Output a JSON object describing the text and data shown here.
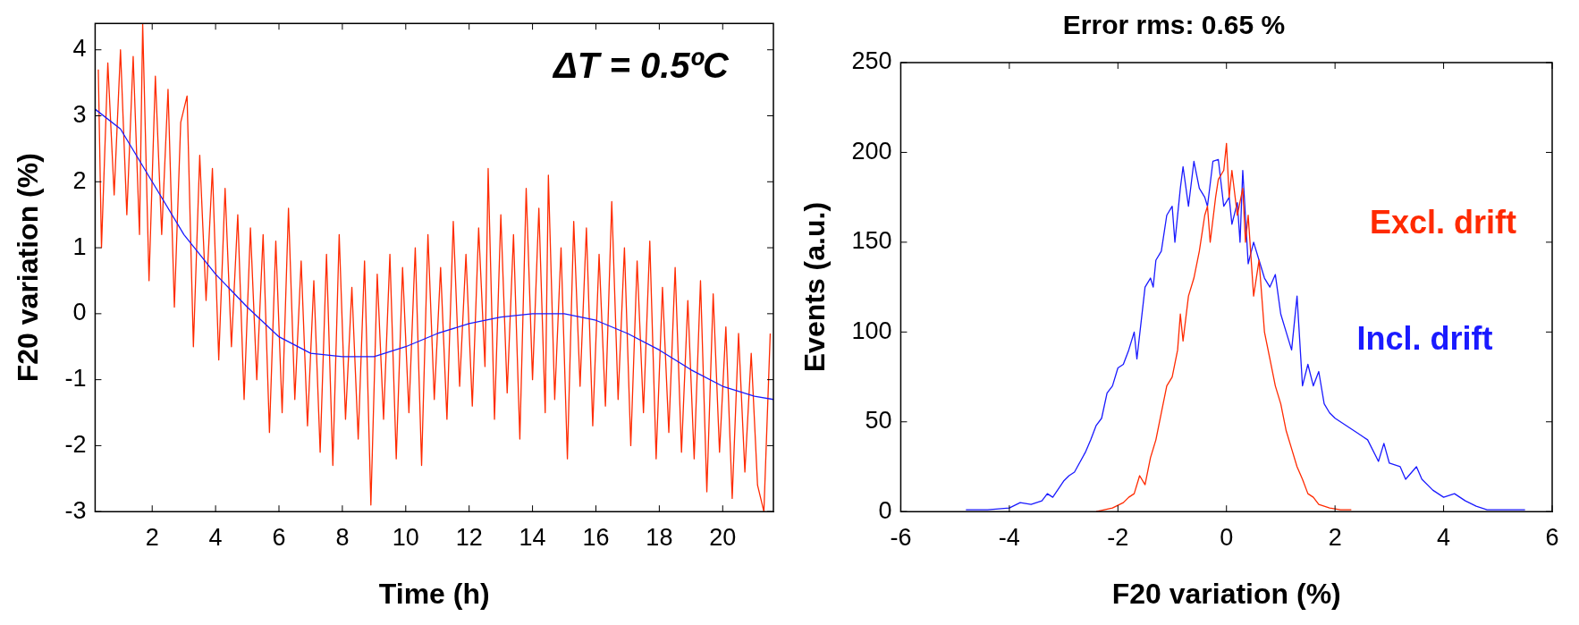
{
  "chart_data": [
    {
      "type": "line",
      "xlabel": "Time (h)",
      "ylabel": "F20 variation (%)",
      "annotations": [
        "ΔT = 0.5ºC"
      ],
      "marker": "none",
      "xlim": [
        0.2,
        21.6
      ],
      "ylim": [
        -3,
        4.4
      ],
      "xticks": [
        2,
        4,
        6,
        8,
        10,
        12,
        14,
        16,
        18,
        20
      ],
      "yticks": [
        -3,
        -2,
        -1,
        0,
        1,
        2,
        3,
        4
      ],
      "series": [
        {
          "color": "#ff2a00",
          "x": [
            0.3,
            0.4,
            0.6,
            0.8,
            1.0,
            1.2,
            1.4,
            1.6,
            1.7,
            1.9,
            2.1,
            2.3,
            2.5,
            2.7,
            2.9,
            3.1,
            3.3,
            3.5,
            3.7,
            3.9,
            4.1,
            4.3,
            4.5,
            4.7,
            4.9,
            5.1,
            5.3,
            5.5,
            5.7,
            5.9,
            6.1,
            6.3,
            6.5,
            6.7,
            6.9,
            7.1,
            7.3,
            7.5,
            7.7,
            7.9,
            8.1,
            8.3,
            8.5,
            8.7,
            8.9,
            9.1,
            9.3,
            9.5,
            9.7,
            9.9,
            10.1,
            10.3,
            10.5,
            10.7,
            10.9,
            11.1,
            11.3,
            11.5,
            11.7,
            11.9,
            12.1,
            12.3,
            12.5,
            12.6,
            12.8,
            13.0,
            13.2,
            13.4,
            13.6,
            13.8,
            14.0,
            14.2,
            14.4,
            14.5,
            14.7,
            14.9,
            15.1,
            15.3,
            15.5,
            15.7,
            15.9,
            16.1,
            16.3,
            16.5,
            16.7,
            16.9,
            17.1,
            17.3,
            17.5,
            17.7,
            17.9,
            18.1,
            18.3,
            18.5,
            18.7,
            18.9,
            19.1,
            19.3,
            19.5,
            19.7,
            19.9,
            20.1,
            20.3,
            20.5,
            20.7,
            20.9,
            21.1,
            21.3,
            21.5
          ],
          "values": [
            3.7,
            1.0,
            3.8,
            1.8,
            4.0,
            1.5,
            3.9,
            1.2,
            4.4,
            0.5,
            3.6,
            1.2,
            3.4,
            0.1,
            2.9,
            3.3,
            -0.5,
            2.4,
            0.2,
            2.2,
            -0.7,
            1.9,
            -0.5,
            1.5,
            -1.3,
            1.3,
            -1.0,
            1.2,
            -1.8,
            1.1,
            -1.5,
            1.6,
            -1.3,
            0.8,
            -1.7,
            0.5,
            -2.1,
            0.9,
            -2.3,
            1.2,
            -1.6,
            0.4,
            -1.9,
            0.8,
            -2.9,
            0.6,
            -1.6,
            0.9,
            -2.2,
            0.7,
            -1.5,
            1.0,
            -2.3,
            1.2,
            -1.3,
            0.7,
            -1.6,
            1.4,
            -1.1,
            0.9,
            -1.4,
            1.3,
            -0.8,
            2.2,
            -1.6,
            1.5,
            -1.2,
            1.2,
            -1.9,
            1.9,
            -1.0,
            1.6,
            -1.5,
            2.1,
            -1.3,
            1.0,
            -2.2,
            1.4,
            -1.1,
            1.3,
            -1.7,
            0.9,
            -1.4,
            1.7,
            -1.3,
            1.0,
            -2.0,
            0.8,
            -1.5,
            1.1,
            -2.2,
            0.4,
            -1.8,
            0.7,
            -2.1,
            0.2,
            -2.2,
            0.5,
            -2.7,
            0.3,
            -2.1,
            -0.2,
            -2.8,
            -0.3,
            -2.4,
            -0.6,
            -2.6,
            -3.0,
            -0.3
          ]
        },
        {
          "color": "#1a1aff",
          "x": [
            0.2,
            1,
            2,
            3,
            4,
            5,
            6,
            7,
            8,
            9,
            10,
            11,
            12,
            13,
            14,
            15,
            16,
            17,
            18,
            19,
            20,
            21,
            21.6
          ],
          "values": [
            3.1,
            2.8,
            2.0,
            1.2,
            0.6,
            0.1,
            -0.35,
            -0.6,
            -0.65,
            -0.65,
            -0.5,
            -0.3,
            -0.15,
            -0.05,
            0.0,
            0.0,
            -0.1,
            -0.3,
            -0.55,
            -0.85,
            -1.1,
            -1.25,
            -1.3
          ]
        }
      ]
    },
    {
      "type": "line",
      "title": "Error rms: 0.65 %",
      "xlabel": "F20 variation (%)",
      "ylabel": "Events (a.u.)",
      "marker": "none",
      "xlim": [
        -6,
        6
      ],
      "ylim": [
        0,
        250
      ],
      "xticks": [
        -6,
        -4,
        -2,
        0,
        2,
        4,
        6
      ],
      "yticks": [
        0,
        50,
        100,
        150,
        200,
        250
      ],
      "series": [
        {
          "name": "Incl. drift",
          "color": "#1a1aff",
          "x": [
            -4.8,
            -4.4,
            -4.0,
            -3.8,
            -3.6,
            -3.4,
            -3.3,
            -3.2,
            -3.0,
            -2.9,
            -2.8,
            -2.6,
            -2.5,
            -2.4,
            -2.3,
            -2.2,
            -2.1,
            -2.0,
            -1.9,
            -1.8,
            -1.7,
            -1.65,
            -1.5,
            -1.4,
            -1.35,
            -1.3,
            -1.2,
            -1.1,
            -1.0,
            -0.95,
            -0.85,
            -0.8,
            -0.7,
            -0.6,
            -0.5,
            -0.4,
            -0.35,
            -0.25,
            -0.15,
            -0.05,
            0.05,
            0.1,
            0.2,
            0.25,
            0.3,
            0.4,
            0.5,
            0.6,
            0.7,
            0.8,
            0.9,
            1.0,
            1.1,
            1.2,
            1.3,
            1.4,
            1.5,
            1.6,
            1.7,
            1.8,
            1.9,
            2.0,
            2.2,
            2.4,
            2.6,
            2.8,
            2.9,
            3.0,
            3.2,
            3.3,
            3.5,
            3.6,
            3.8,
            4.0,
            4.2,
            4.4,
            4.6,
            4.8,
            5.0,
            5.5
          ],
          "values": [
            1,
            1,
            2,
            5,
            4,
            6,
            10,
            8,
            17,
            20,
            22,
            33,
            40,
            48,
            52,
            66,
            70,
            80,
            82,
            90,
            100,
            85,
            125,
            130,
            125,
            140,
            145,
            165,
            170,
            150,
            180,
            192,
            170,
            195,
            180,
            175,
            170,
            195,
            196,
            170,
            175,
            160,
            172,
            150,
            190,
            138,
            150,
            140,
            130,
            125,
            132,
            110,
            100,
            90,
            120,
            70,
            82,
            70,
            78,
            60,
            55,
            52,
            48,
            44,
            40,
            28,
            38,
            27,
            25,
            18,
            25,
            18,
            12,
            8,
            10,
            6,
            3,
            1,
            1,
            1
          ]
        },
        {
          "name": "Excl. drift",
          "color": "#ff2a00",
          "x": [
            -2.4,
            -2.1,
            -1.9,
            -1.8,
            -1.7,
            -1.6,
            -1.5,
            -1.4,
            -1.3,
            -1.2,
            -1.1,
            -1.0,
            -0.9,
            -0.85,
            -0.8,
            -0.7,
            -0.6,
            -0.5,
            -0.4,
            -0.35,
            -0.3,
            -0.2,
            -0.15,
            -0.05,
            0.0,
            0.05,
            0.1,
            0.2,
            0.3,
            0.35,
            0.4,
            0.5,
            0.6,
            0.7,
            0.8,
            0.9,
            1.0,
            1.1,
            1.2,
            1.3,
            1.4,
            1.5,
            1.6,
            1.7,
            1.9,
            2.1,
            2.3
          ],
          "values": [
            0,
            2,
            5,
            8,
            10,
            20,
            15,
            30,
            40,
            55,
            70,
            75,
            90,
            110,
            95,
            120,
            130,
            145,
            165,
            170,
            150,
            175,
            185,
            190,
            205,
            175,
            190,
            165,
            180,
            150,
            165,
            120,
            140,
            100,
            85,
            70,
            60,
            45,
            35,
            25,
            18,
            10,
            8,
            4,
            2,
            1,
            1
          ]
        }
      ]
    }
  ]
}
